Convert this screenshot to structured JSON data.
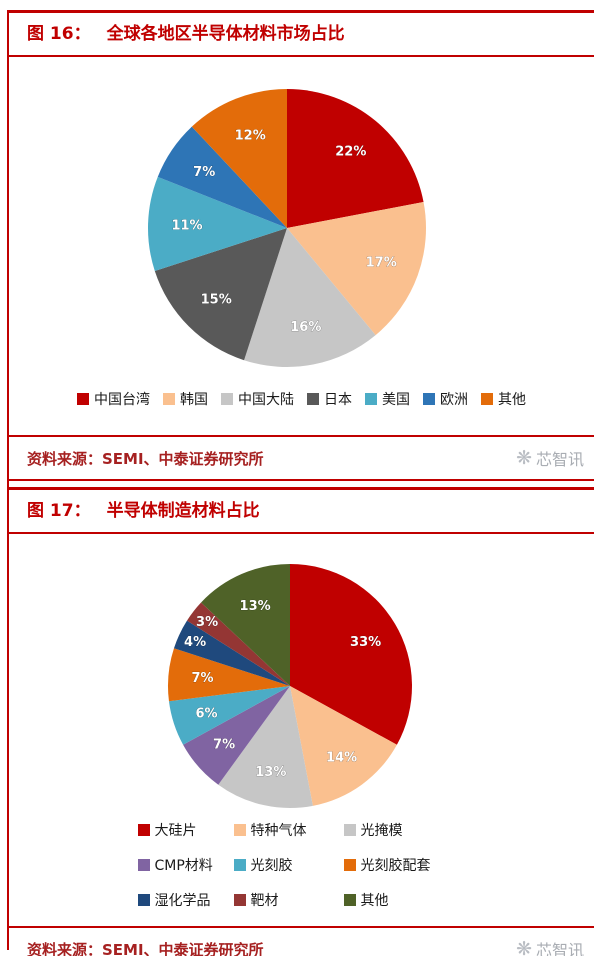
{
  "page": {
    "accent_color": "#c00000",
    "background": "#ffffff"
  },
  "figures": [
    {
      "header_label": "图 16：",
      "header_title": "全球各地区半导体材料市场占比",
      "source": "资料来源：SEMI、中泰证券研究所",
      "watermark": "芯智讯",
      "watermark_icon": "❋"
    },
    {
      "header_label": "图 17：",
      "header_title": "半导体制造材料占比",
      "source": "资料来源：SEMI、中泰证券研究所",
      "watermark": "芯智讯",
      "watermark_icon": "❋"
    }
  ],
  "chart_data": [
    {
      "type": "pie",
      "title": "全球各地区半导体材料市场占比",
      "labels": [
        "中国台湾",
        "韩国",
        "中国大陆",
        "日本",
        "美国",
        "欧洲",
        "其他"
      ],
      "values": [
        22,
        17,
        16,
        15,
        11,
        7,
        12
      ],
      "unit": "%",
      "colors": [
        "#c00000",
        "#fac08f",
        "#c6c6c6",
        "#595959",
        "#4bacc6",
        "#2e75b6",
        "#e36c0a"
      ],
      "start_angle_deg": 0,
      "direction": "clockwise",
      "data_labels": [
        "22%",
        "17%",
        "16%",
        "15%",
        "11%",
        "7%",
        "12%"
      ],
      "legend_position": "bottom",
      "label_color": "#ffffff"
    },
    {
      "type": "pie",
      "title": "半导体制造材料占比",
      "labels": [
        "大硅片",
        "特种气体",
        "光掩模",
        "CMP材料",
        "光刻胶",
        "光刻胶配套",
        "湿化学品",
        "靶材",
        "其他"
      ],
      "values": [
        33,
        14,
        13,
        7,
        6,
        7,
        4,
        3,
        13
      ],
      "unit": "%",
      "colors": [
        "#c00000",
        "#fac08f",
        "#c6c6c6",
        "#8064a2",
        "#4bacc6",
        "#e36c0a",
        "#1f497d",
        "#943634",
        "#4f6228"
      ],
      "start_angle_deg": 0,
      "direction": "clockwise",
      "data_labels": [
        "33%",
        "14%",
        "13%",
        "7%",
        "6%",
        "7%",
        "4%",
        "3%",
        "13%"
      ],
      "legend_position": "bottom",
      "label_color": "#ffffff"
    }
  ]
}
